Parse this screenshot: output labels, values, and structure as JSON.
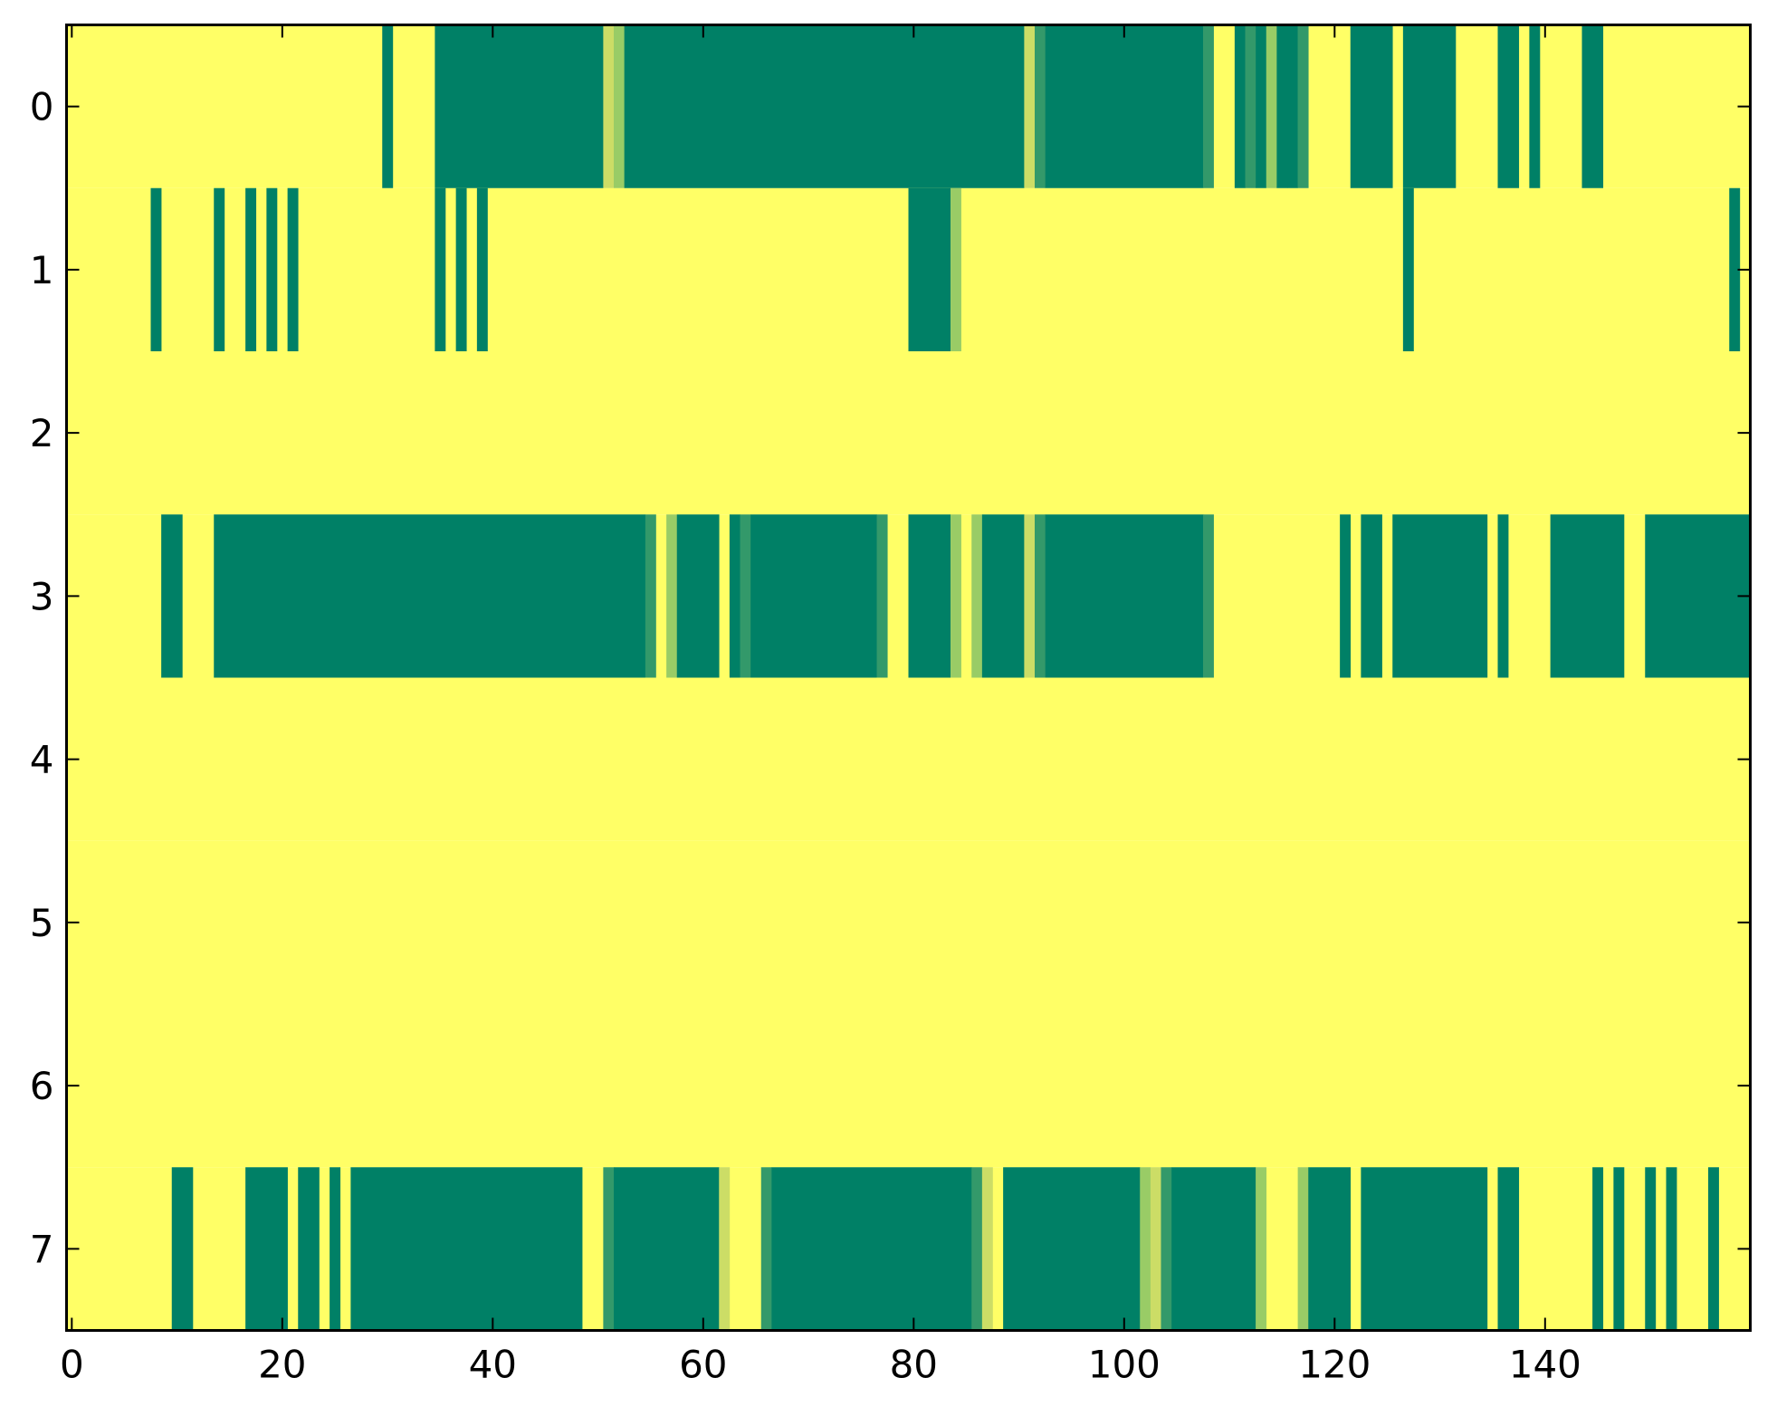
{
  "chart_data": {
    "type": "heatmap",
    "title": "",
    "xlabel": "",
    "ylabel": "",
    "n_cols": 160,
    "n_rows": 8,
    "xlim": [
      -0.5,
      159.5
    ],
    "ylim": [
      7.5,
      -0.5
    ],
    "y_axis_inverted": true,
    "grid": false,
    "colormap": "summer",
    "colors": {
      "low": "#008066",
      "mid_low": "#33996a",
      "mid_high": "#99cc66",
      "light": "#ccdd66",
      "high": "#ffff66"
    },
    "x_ticks": [
      0,
      20,
      40,
      60,
      80,
      100,
      120,
      140
    ],
    "x_tick_labels": [
      "0",
      "20",
      "40",
      "60",
      "80",
      "100",
      "120",
      "140"
    ],
    "y_ticks": [
      0,
      1,
      2,
      3,
      4,
      5,
      6,
      7
    ],
    "y_tick_labels": [
      "0",
      "1",
      "2",
      "3",
      "4",
      "5",
      "6",
      "7"
    ],
    "default_value": 1.0,
    "rows": [
      {
        "row": 0,
        "segments": [
          [
            30,
            30,
            0.0
          ],
          [
            35,
            50,
            0.0
          ],
          [
            51,
            51,
            0.9
          ],
          [
            52,
            52,
            0.6
          ],
          [
            53,
            90,
            0.0
          ],
          [
            91,
            91,
            0.8
          ],
          [
            92,
            92,
            0.3
          ],
          [
            93,
            107,
            0.0
          ],
          [
            108,
            108,
            0.3
          ],
          [
            111,
            111,
            0.0
          ],
          [
            112,
            112,
            0.3
          ],
          [
            113,
            113,
            0.0
          ],
          [
            114,
            114,
            0.6
          ],
          [
            115,
            115,
            0.0
          ],
          [
            116,
            116,
            0.0
          ],
          [
            117,
            117,
            0.3
          ],
          [
            122,
            125,
            0.0
          ],
          [
            127,
            131,
            0.0
          ],
          [
            136,
            137,
            0.0
          ],
          [
            139,
            139,
            0.0
          ],
          [
            144,
            145,
            0.0
          ]
        ]
      },
      {
        "row": 1,
        "segments": [
          [
            8,
            8,
            0.0
          ],
          [
            14,
            14,
            0.0
          ],
          [
            17,
            17,
            0.0
          ],
          [
            19,
            19,
            0.0
          ],
          [
            21,
            21,
            0.0
          ],
          [
            35,
            35,
            0.0
          ],
          [
            37,
            37,
            0.0
          ],
          [
            39,
            39,
            0.0
          ],
          [
            80,
            83,
            0.0
          ],
          [
            84,
            84,
            0.6
          ],
          [
            127,
            127,
            0.0
          ],
          [
            158,
            158,
            0.0
          ]
        ]
      },
      {
        "row": 2,
        "segments": []
      },
      {
        "row": 3,
        "segments": [
          [
            9,
            10,
            0.0
          ],
          [
            14,
            54,
            0.0
          ],
          [
            55,
            55,
            0.3
          ],
          [
            57,
            57,
            0.6
          ],
          [
            58,
            61,
            0.0
          ],
          [
            63,
            63,
            0.0
          ],
          [
            64,
            64,
            0.3
          ],
          [
            65,
            76,
            0.0
          ],
          [
            77,
            77,
            0.3
          ],
          [
            80,
            83,
            0.0
          ],
          [
            84,
            84,
            0.6
          ],
          [
            86,
            86,
            0.6
          ],
          [
            87,
            90,
            0.0
          ],
          [
            91,
            91,
            0.8
          ],
          [
            92,
            92,
            0.3
          ],
          [
            93,
            107,
            0.0
          ],
          [
            108,
            108,
            0.3
          ],
          [
            121,
            121,
            0.0
          ],
          [
            123,
            124,
            0.0
          ],
          [
            126,
            134,
            0.0
          ],
          [
            136,
            136,
            0.0
          ],
          [
            141,
            147,
            0.0
          ],
          [
            150,
            159,
            0.0
          ]
        ]
      },
      {
        "row": 4,
        "segments": []
      },
      {
        "row": 5,
        "segments": []
      },
      {
        "row": 6,
        "segments": []
      },
      {
        "row": 7,
        "segments": [
          [
            10,
            11,
            0.0
          ],
          [
            17,
            20,
            0.0
          ],
          [
            22,
            23,
            0.0
          ],
          [
            25,
            25,
            0.0
          ],
          [
            27,
            48,
            0.0
          ],
          [
            51,
            51,
            0.3
          ],
          [
            52,
            61,
            0.0
          ],
          [
            62,
            62,
            0.9
          ],
          [
            66,
            66,
            0.3
          ],
          [
            67,
            85,
            0.0
          ],
          [
            86,
            86,
            0.3
          ],
          [
            87,
            87,
            0.8
          ],
          [
            89,
            101,
            0.0
          ],
          [
            102,
            102,
            0.6
          ],
          [
            103,
            103,
            0.9
          ],
          [
            104,
            104,
            0.3
          ],
          [
            105,
            112,
            0.0
          ],
          [
            113,
            113,
            0.6
          ],
          [
            117,
            117,
            0.6
          ],
          [
            118,
            121,
            0.0
          ],
          [
            123,
            134,
            0.0
          ],
          [
            136,
            137,
            0.0
          ],
          [
            145,
            145,
            0.0
          ],
          [
            147,
            147,
            0.0
          ],
          [
            150,
            150,
            0.0
          ],
          [
            152,
            152,
            0.0
          ],
          [
            156,
            156,
            0.0
          ]
        ]
      }
    ]
  }
}
